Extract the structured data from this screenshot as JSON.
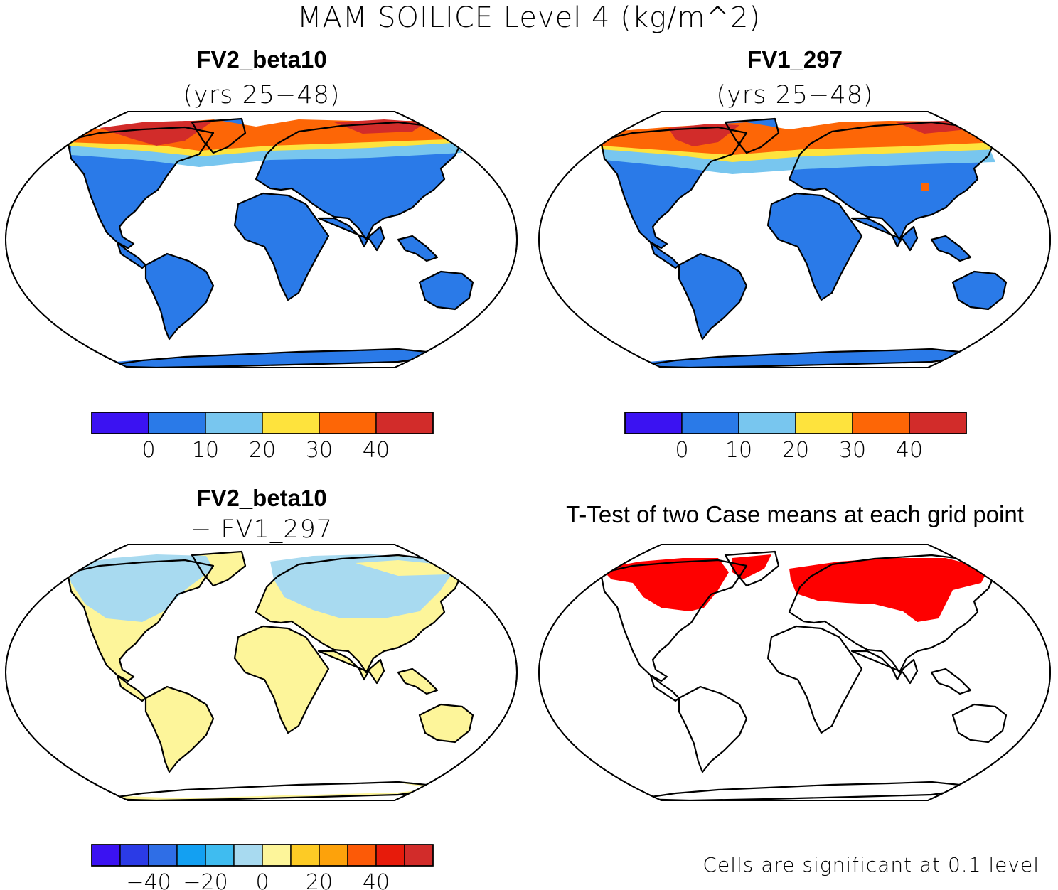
{
  "figure": {
    "title": "MAM SOILICE Level 4 (kg/m^2)"
  },
  "panels": [
    {
      "id": "fv2",
      "title": "FV2_beta10",
      "subtitle": "(yrs 25−48)",
      "colorbar": {
        "colors": [
          "#3b12f2",
          "#2a7ae8",
          "#78c6ef",
          "#fee33d",
          "#fd6606",
          "#d22c2a"
        ],
        "ticks": [
          "0",
          "10",
          "20",
          "30",
          "40"
        ]
      },
      "fields": {
        "ocean": "#ffffff",
        "land_low": "#2a7ae8",
        "band_light": "#78c6ef",
        "band_yellow": "#fee33d",
        "band_orange": "#fd6606",
        "band_red": "#d22c2a"
      }
    },
    {
      "id": "fv1",
      "title": "FV1_297",
      "subtitle": "(yrs 25−48)",
      "colorbar": {
        "colors": [
          "#3b12f2",
          "#2a7ae8",
          "#78c6ef",
          "#fee33d",
          "#fd6606",
          "#d22c2a"
        ],
        "ticks": [
          "0",
          "10",
          "20",
          "30",
          "40"
        ]
      }
    },
    {
      "id": "diff",
      "title": "FV2_beta10",
      "subtitle": "− FV1_297",
      "colorbar": {
        "colors": [
          "#3b12f2",
          "#2b3be6",
          "#2f6ee6",
          "#13a0f2",
          "#3fbcf0",
          "#a8daf0",
          "#fdf59a",
          "#fdcb25",
          "#fda20b",
          "#fc5a07",
          "#e71b0b",
          "#d22c2a"
        ],
        "ticks": [
          "−40",
          "−20",
          "0",
          "20",
          "40"
        ]
      }
    },
    {
      "id": "ttest",
      "title": "T-Test of two Case means at each grid point",
      "note": "Cells are significant at 0.1 level",
      "significant_color": "#fe0000"
    }
  ]
}
